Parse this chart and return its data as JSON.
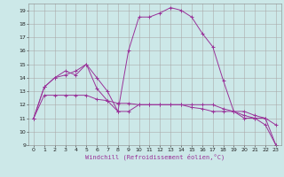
{
  "title": "",
  "xlabel": "Windchill (Refroidissement éolien,°C)",
  "bg_color": "#cce8e8",
  "grid_color": "#aaaaaa",
  "line_color": "#993399",
  "xlim": [
    -0.5,
    23.5
  ],
  "ylim": [
    9,
    19.5
  ],
  "yticks": [
    9,
    10,
    11,
    12,
    13,
    14,
    15,
    16,
    17,
    18,
    19
  ],
  "xticks": [
    0,
    1,
    2,
    3,
    4,
    5,
    6,
    7,
    8,
    9,
    10,
    11,
    12,
    13,
    14,
    15,
    16,
    17,
    18,
    19,
    20,
    21,
    22,
    23
  ],
  "lines": [
    {
      "x": [
        0,
        1,
        2,
        3,
        4,
        5,
        6,
        7,
        8,
        9,
        10,
        11,
        12,
        13,
        14,
        15,
        16,
        17,
        18,
        19,
        20,
        21,
        22,
        23
      ],
      "y": [
        11,
        13.3,
        14,
        14.5,
        14.2,
        15,
        13.2,
        12.3,
        11.5,
        11.5,
        12,
        12,
        12,
        12,
        12,
        11.8,
        11.7,
        11.5,
        11.5,
        11.5,
        11.5,
        11.2,
        11,
        10.5
      ]
    },
    {
      "x": [
        0,
        1,
        2,
        3,
        4,
        5,
        6,
        7,
        8,
        9,
        10,
        11,
        12,
        13,
        14,
        15,
        16,
        17,
        18,
        19,
        20,
        21,
        22,
        23
      ],
      "y": [
        11,
        12.7,
        12.7,
        12.7,
        12.7,
        12.7,
        12.4,
        12.3,
        12.1,
        12.1,
        12,
        12,
        12,
        12,
        12,
        12,
        12,
        12,
        11.7,
        11.5,
        11.2,
        11,
        11,
        9
      ]
    },
    {
      "x": [
        0,
        1,
        2,
        3,
        4,
        5,
        6,
        7,
        8,
        9,
        10,
        11,
        12,
        13,
        14,
        15,
        16,
        17,
        18,
        19,
        20,
        21,
        22,
        23
      ],
      "y": [
        11,
        13.3,
        14,
        14.2,
        14.5,
        15,
        14,
        13.0,
        11.5,
        16.0,
        18.5,
        18.5,
        18.8,
        19.2,
        19.0,
        18.5,
        17.3,
        16.3,
        13.8,
        11.5,
        11,
        11,
        10.5,
        9
      ]
    }
  ]
}
